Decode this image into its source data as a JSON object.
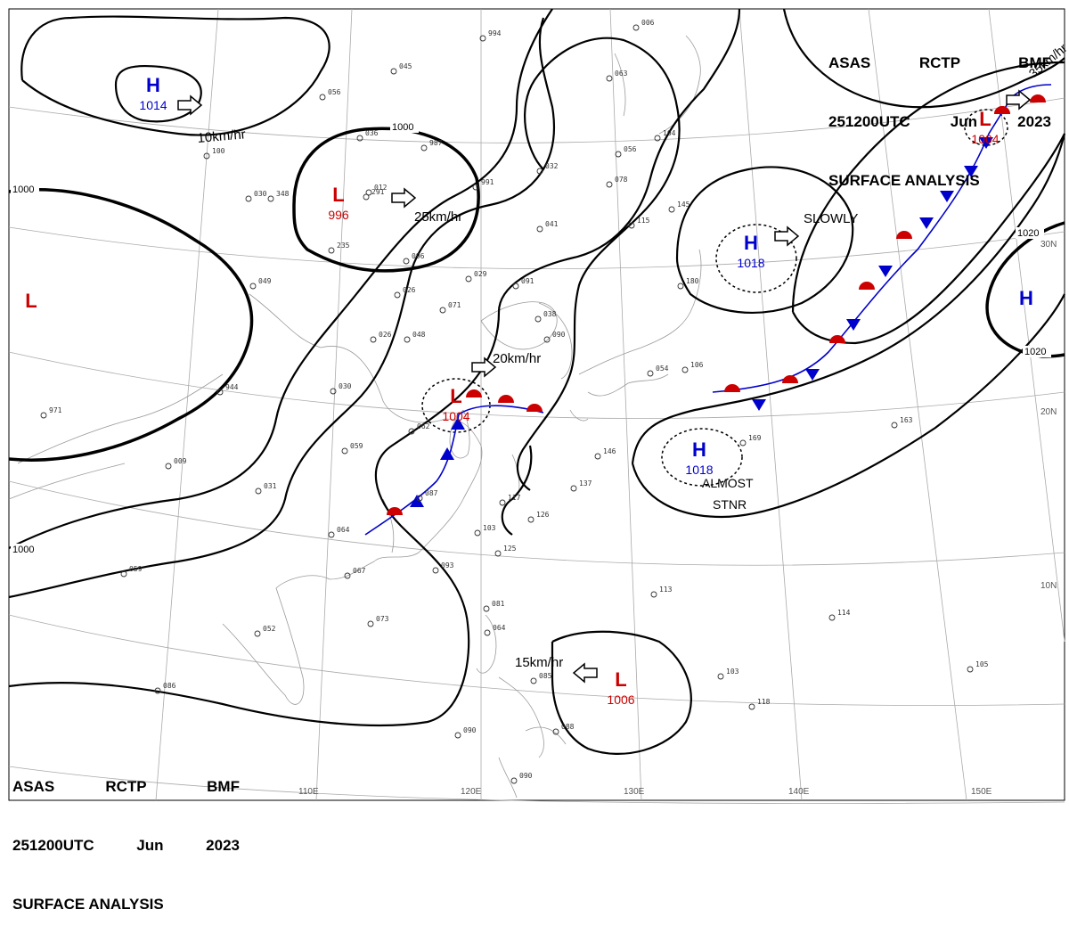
{
  "header": {
    "agency": "ASAS",
    "station": "RCTP",
    "office": "BMF",
    "datetime": "251200UTC",
    "month": "Jun",
    "year": "2023",
    "product": "SURFACE ANALYSIS"
  },
  "pressure_centers": [
    {
      "type": "H",
      "value": "1014",
      "color": "#0000cc"
    },
    {
      "type": "L",
      "value": "996",
      "color": "#cc0000"
    },
    {
      "type": "L",
      "value": "1004",
      "color": "#cc0000"
    },
    {
      "type": "L",
      "value": "1004",
      "color": "#cc0000"
    },
    {
      "type": "L",
      "value": "1006",
      "color": "#cc0000"
    },
    {
      "type": "H",
      "value": "1018",
      "color": "#0000cc"
    },
    {
      "type": "H",
      "value": "1018",
      "color": "#0000cc"
    },
    {
      "type": "H",
      "value": "",
      "color": "#0000cc"
    },
    {
      "type": "L",
      "value": "",
      "color": "#cc0000"
    }
  ],
  "movements": [
    {
      "label": "10km/hr"
    },
    {
      "label": "25km/hr"
    },
    {
      "label": "20km/hr"
    },
    {
      "label": "15km/hr"
    },
    {
      "label": "35km/hr"
    },
    {
      "label": "SLOWLY"
    },
    {
      "label": "ALMOST"
    },
    {
      "label": "STNR"
    }
  ],
  "isobar_labels": [
    "1000",
    "1000",
    "1000",
    "1020",
    "1020"
  ],
  "longitude_labels": [
    "110E",
    "120E",
    "130E",
    "140E",
    "150E"
  ],
  "latitude_labels": [
    "30N",
    "20N",
    "10N"
  ],
  "station_obs": [
    "994",
    "006",
    "045",
    "063",
    "056",
    "036",
    "987",
    "032",
    "104",
    "056",
    "078",
    "991",
    "291",
    "348",
    "049",
    "235",
    "041",
    "115",
    "145",
    "096",
    "029",
    "091",
    "026",
    "071",
    "048",
    "090",
    "180",
    "026",
    "944",
    "030",
    "054",
    "062",
    "059",
    "117",
    "146",
    "137",
    "126",
    "169",
    "163",
    "009",
    "031",
    "087",
    "064",
    "103",
    "125",
    "093",
    "067",
    "059",
    "113",
    "114",
    "052",
    "073",
    "081",
    "064",
    "085",
    "103",
    "105",
    "086",
    "090",
    "088",
    "118",
    "090",
    "971",
    "100",
    "106",
    "038",
    "012",
    "030"
  ],
  "colors": {
    "isobar": "#000000",
    "high": "#0000cc",
    "low": "#cc0000",
    "cold_front": "#0000cc",
    "warm_front": "#cc0000",
    "coast": "#9a9a9a",
    "grid": "#aaaaaa"
  }
}
